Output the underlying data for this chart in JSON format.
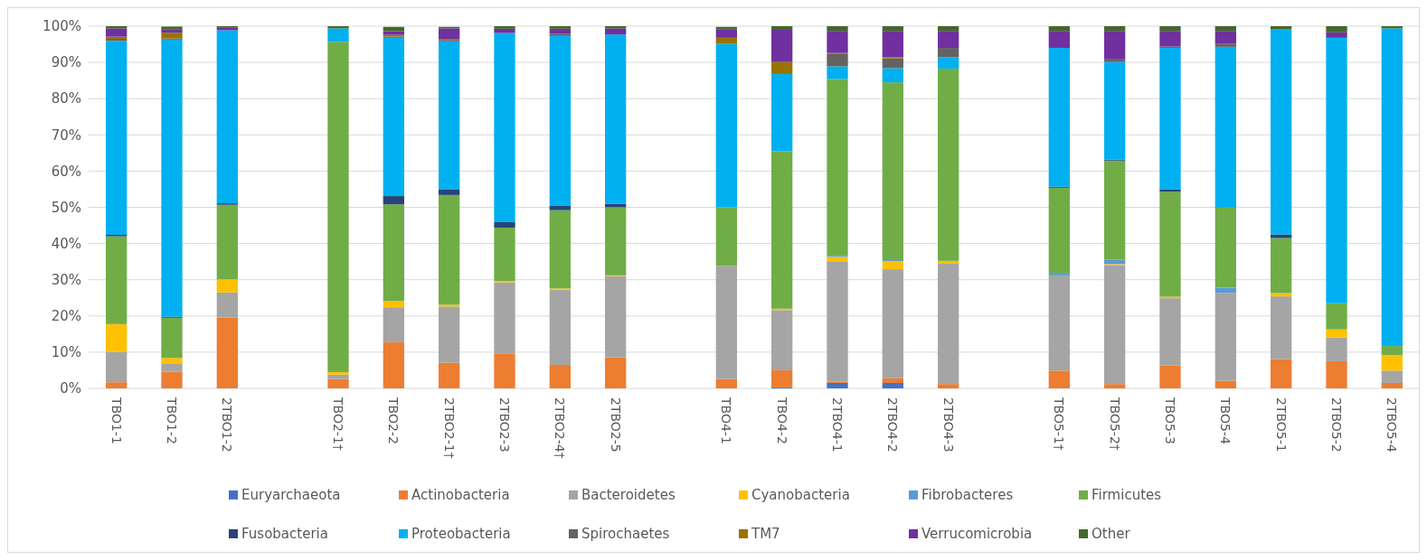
{
  "chart_data": {
    "type": "bar",
    "stacked": true,
    "grid": "y",
    "legend": "bottom",
    "categories": [
      "TBO1-1",
      "TBO1-2",
      "2TBO1-2",
      null,
      "TBO2-1†",
      "TBO2-2",
      "2TBO2-1†",
      "2TBO2-3",
      "2TBO2-4†",
      "2TBO2-5",
      null,
      "TBO4-1",
      "TBO4-2",
      "2TBO4-1",
      "2TBO4-2",
      "2TBO4-3",
      null,
      "TBO5-1†",
      "TBO5-2†",
      "TBO5-3",
      "TBO5-4",
      "2TBO5-1",
      "2TBO5-2",
      "2TBO5-4"
    ],
    "ylim": [
      0,
      100
    ],
    "yticks": [
      {
        "value": 0,
        "label": "0%"
      },
      {
        "value": 10,
        "label": "10%"
      },
      {
        "value": 20,
        "label": "20%"
      },
      {
        "value": 30,
        "label": "30%"
      },
      {
        "value": 40,
        "label": "40%"
      },
      {
        "value": 50,
        "label": "50%"
      },
      {
        "value": 60,
        "label": "60%"
      },
      {
        "value": 70,
        "label": "70%"
      },
      {
        "value": 80,
        "label": "80%"
      },
      {
        "value": 90,
        "label": "90%"
      },
      {
        "value": 100,
        "label": "100%"
      }
    ],
    "series": [
      {
        "name": "Euryarchaeota",
        "color": "#4472c4",
        "values": [
          0,
          0,
          0,
          null,
          0,
          0,
          0,
          0,
          0,
          0,
          null,
          0,
          0.3,
          1.5,
          1.5,
          0,
          null,
          0,
          0,
          0,
          0,
          0,
          0,
          0
        ]
      },
      {
        "name": "Actinobacteria",
        "color": "#ed7d31",
        "values": [
          1.7,
          4.6,
          19.6,
          null,
          2.6,
          12.7,
          7.1,
          9.5,
          6.5,
          8.6,
          null,
          2.6,
          4.7,
          0.3,
          1.3,
          1.2,
          null,
          4.9,
          1.2,
          6.3,
          2.1,
          8.1,
          7.5,
          1.5
        ]
      },
      {
        "name": "Bacteroidetes",
        "color": "#a5a5a5",
        "values": [
          8.4,
          2.3,
          6.9,
          null,
          1.2,
          9.7,
          15.5,
          19.8,
          20.8,
          22.4,
          null,
          31.2,
          16.6,
          33.3,
          30.1,
          33.2,
          null,
          26.3,
          32.8,
          18.6,
          24.2,
          17.3,
          6.6,
          3.4
        ]
      },
      {
        "name": "Cyanobacteria",
        "color": "#ffc000",
        "values": [
          7.6,
          1.5,
          3.6,
          null,
          0.7,
          1.7,
          0.5,
          0.3,
          0.3,
          0.2,
          null,
          null,
          0.4,
          1.2,
          2.2,
          0.8,
          null,
          0,
          0.3,
          0.4,
          0,
          0.9,
          2.2,
          4.3
        ]
      },
      {
        "name": "Fibrobacteres",
        "color": "#5b9bd5",
        "values": [
          0.2,
          null,
          0,
          null,
          0,
          null,
          null,
          0,
          0,
          0,
          null,
          0,
          0,
          0.3,
          0.3,
          0,
          null,
          0.7,
          1.2,
          0,
          1.5,
          0,
          0,
          0
        ]
      },
      {
        "name": "Firmicutes",
        "color": "#70ad47",
        "values": [
          24.1,
          11.1,
          20.6,
          null,
          91.2,
          26.7,
          30.3,
          14.8,
          21.6,
          18.8,
          null,
          16.2,
          43.5,
          48.8,
          49.1,
          53.1,
          null,
          23.5,
          27.4,
          29.0,
          22.1,
          15.2,
          7.2,
          2.5
        ]
      },
      {
        "name": "Fusobacteria",
        "color": "#264478",
        "values": [
          0.4,
          0.3,
          0.4,
          null,
          0,
          2.3,
          1.6,
          1.5,
          1.2,
          1.0,
          null,
          0,
          0,
          0,
          0,
          0,
          null,
          0.3,
          0.3,
          0.7,
          0,
          1.0,
          0,
          0
        ]
      },
      {
        "name": "Proteobacteria",
        "color": "#00b0f0",
        "values": [
          53.5,
          76.5,
          47.8,
          null,
          3.7,
          43.7,
          40.8,
          52.2,
          46.9,
          46.7,
          null,
          45.1,
          21.3,
          3.5,
          3.9,
          3.1,
          null,
          38.3,
          26.9,
          39.0,
          44.4,
          56.6,
          73.3,
          87.7
        ]
      },
      {
        "name": "Spirochaetes",
        "color": "#636363",
        "values": [
          0.6,
          0.3,
          0,
          null,
          0,
          0.3,
          0.4,
          0,
          0.6,
          0,
          null,
          0,
          0,
          3.4,
          2.7,
          2.6,
          null,
          0,
          0.9,
          0.4,
          0.9,
          0,
          0,
          0
        ]
      },
      {
        "name": "TM7",
        "color": "#997300",
        "values": [
          0.6,
          1.6,
          0,
          null,
          0,
          0.5,
          0.3,
          0,
          0,
          0,
          null,
          1.7,
          3.3,
          0.3,
          0.3,
          0,
          null,
          0,
          0,
          0,
          0,
          0,
          0,
          0
        ]
      },
      {
        "name": "Verrucomicrobia",
        "color": "#7030a0",
        "values": [
          2.3,
          1.0,
          0.8,
          null,
          0,
          1.0,
          2.9,
          1.2,
          1.4,
          1.7,
          null,
          2.4,
          8.9,
          6.1,
          7.3,
          4.7,
          null,
          4.7,
          7.7,
          4.3,
          3.5,
          0,
          1.5,
          0
        ]
      },
      {
        "name": "Other",
        "color": "#43682b",
        "values": [
          0.6,
          0.7,
          0.3,
          null,
          0.6,
          1.2,
          0.4,
          0.7,
          0.7,
          0.6,
          null,
          0.6,
          1.0,
          1.3,
          1.3,
          1.3,
          null,
          1.3,
          1.3,
          1.3,
          1.3,
          0.9,
          1.7,
          0.6
        ]
      }
    ]
  }
}
